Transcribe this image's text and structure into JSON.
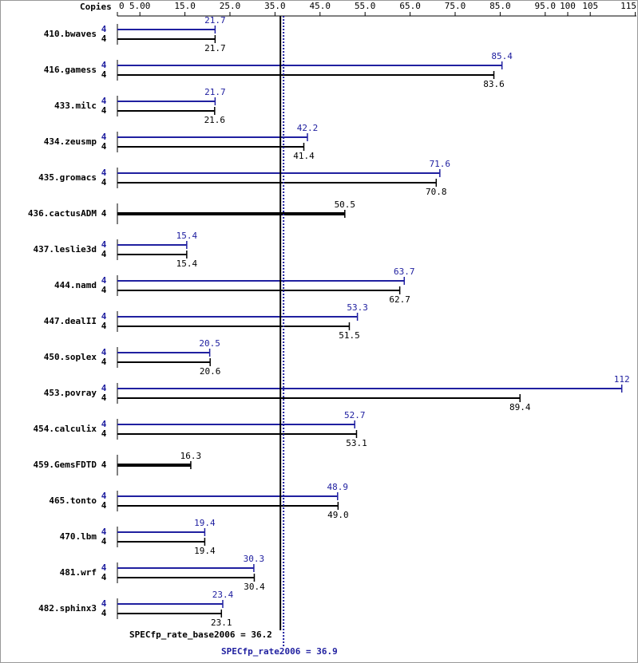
{
  "chart_data": {
    "type": "bar",
    "orientation": "horizontal",
    "copies_label": "Copies",
    "categories": [
      "410.bwaves",
      "416.gamess",
      "433.milc",
      "434.zeusmp",
      "435.gromacs",
      "436.cactusADM",
      "437.leslie3d",
      "444.namd",
      "447.dealII",
      "450.soplex",
      "453.povray",
      "454.calculix",
      "459.GemsFDTD",
      "465.tonto",
      "470.lbm",
      "481.wrf",
      "482.sphinx3"
    ],
    "series": [
      {
        "color": "#2020a0",
        "copies": [
          4,
          4,
          4,
          4,
          4,
          null,
          4,
          4,
          4,
          4,
          4,
          4,
          null,
          4,
          4,
          4,
          4
        ],
        "values": [
          21.7,
          85.4,
          21.7,
          42.2,
          71.6,
          null,
          15.4,
          63.7,
          53.3,
          20.5,
          112,
          52.7,
          null,
          48.9,
          19.4,
          30.3,
          23.4
        ]
      },
      {
        "color": "#000000",
        "copies": [
          4,
          4,
          4,
          4,
          4,
          4,
          4,
          4,
          4,
          4,
          4,
          4,
          4,
          4,
          4,
          4,
          4
        ],
        "values": [
          21.7,
          83.6,
          21.6,
          41.4,
          70.8,
          50.5,
          15.4,
          62.7,
          51.5,
          20.6,
          89.4,
          53.1,
          16.3,
          49.0,
          19.4,
          30.4,
          23.1
        ],
        "value_labels": [
          "21.7",
          "83.6",
          "21.6",
          "41.4",
          "70.8",
          "50.5",
          "15.4",
          "62.7",
          "51.5",
          "20.6",
          "89.4",
          "53.1",
          "16.3",
          "49.0",
          "19.4",
          "30.4",
          "23.1"
        ]
      }
    ],
    "xlim": [
      0,
      115
    ],
    "xticks": [
      0,
      {
        "value": 5,
        "label": "5.00"
      },
      {
        "value": 15,
        "label": "15.0"
      },
      {
        "value": 25,
        "label": "25.0"
      },
      {
        "value": 35,
        "label": "35.0"
      },
      {
        "value": 45,
        "label": "45.0"
      },
      {
        "value": 55,
        "label": "55.0"
      },
      {
        "value": 65,
        "label": "65.0"
      },
      {
        "value": 75,
        "label": "75.0"
      },
      {
        "value": 85,
        "label": "85.0"
      },
      {
        "value": 95,
        "label": "95.0"
      },
      100,
      105,
      115
    ],
    "reference_lines": [
      {
        "label": "SPECfp_rate_base2006 = 36.2",
        "value": 36.2,
        "color": "#000000",
        "style": "solid"
      },
      {
        "label": "SPECfp_rate2006 = 36.9",
        "value": 36.9,
        "color": "#2020a0",
        "style": "dotted"
      }
    ]
  }
}
